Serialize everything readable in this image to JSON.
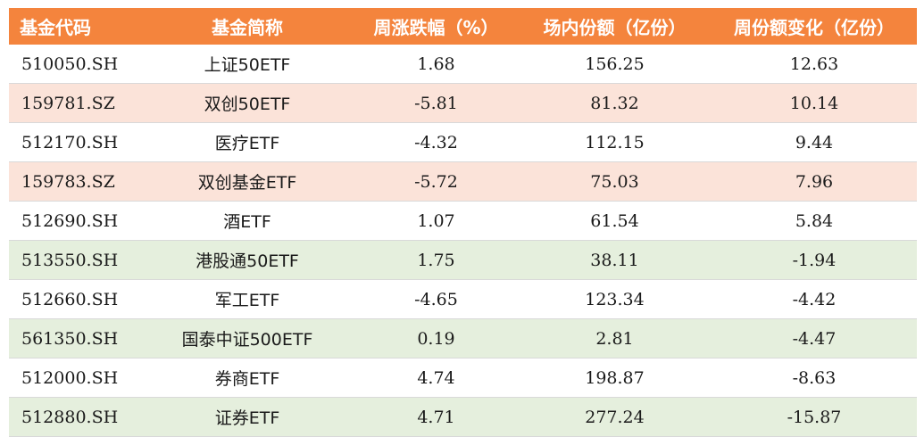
{
  "headers": [
    "基金代码",
    "基金简称",
    "周涨跌幅（%）",
    "场内份额（亿份）",
    "周份额变化（亿份）"
  ],
  "colors": {
    "header_bg": "#f4843d",
    "row_white": "#ffffff",
    "row_pink": "#fbe3d9",
    "row_green": "#e5efdd"
  },
  "rows": [
    {
      "code": "510050.SH",
      "name": "上证50ETF",
      "weekly_change": "1.68",
      "shares": "156.25",
      "share_change": "12.63",
      "highlight": "white"
    },
    {
      "code": "159781.SZ",
      "name": "双创50ETF",
      "weekly_change": "-5.81",
      "shares": "81.32",
      "share_change": "10.14",
      "highlight": "pink"
    },
    {
      "code": "512170.SH",
      "name": "医疗ETF",
      "weekly_change": "-4.32",
      "shares": "112.15",
      "share_change": "9.44",
      "highlight": "white"
    },
    {
      "code": "159783.SZ",
      "name": "双创基金ETF",
      "weekly_change": "-5.72",
      "shares": "75.03",
      "share_change": "7.96",
      "highlight": "pink"
    },
    {
      "code": "512690.SH",
      "name": "酒ETF",
      "weekly_change": "1.07",
      "shares": "61.54",
      "share_change": "5.84",
      "highlight": "white"
    },
    {
      "code": "513550.SH",
      "name": "港股通50ETF",
      "weekly_change": "1.75",
      "shares": "38.11",
      "share_change": "-1.94",
      "highlight": "green"
    },
    {
      "code": "512660.SH",
      "name": "军工ETF",
      "weekly_change": "-4.65",
      "shares": "123.34",
      "share_change": "-4.42",
      "highlight": "white"
    },
    {
      "code": "561350.SH",
      "name": "国泰中证500ETF",
      "weekly_change": "0.19",
      "shares": "2.81",
      "share_change": "-4.47",
      "highlight": "green"
    },
    {
      "code": "512000.SH",
      "name": "券商ETF",
      "weekly_change": "4.74",
      "shares": "198.87",
      "share_change": "-8.63",
      "highlight": "white"
    },
    {
      "code": "512880.SH",
      "name": "证券ETF",
      "weekly_change": "4.71",
      "shares": "277.24",
      "share_change": "-15.87",
      "highlight": "green"
    }
  ]
}
